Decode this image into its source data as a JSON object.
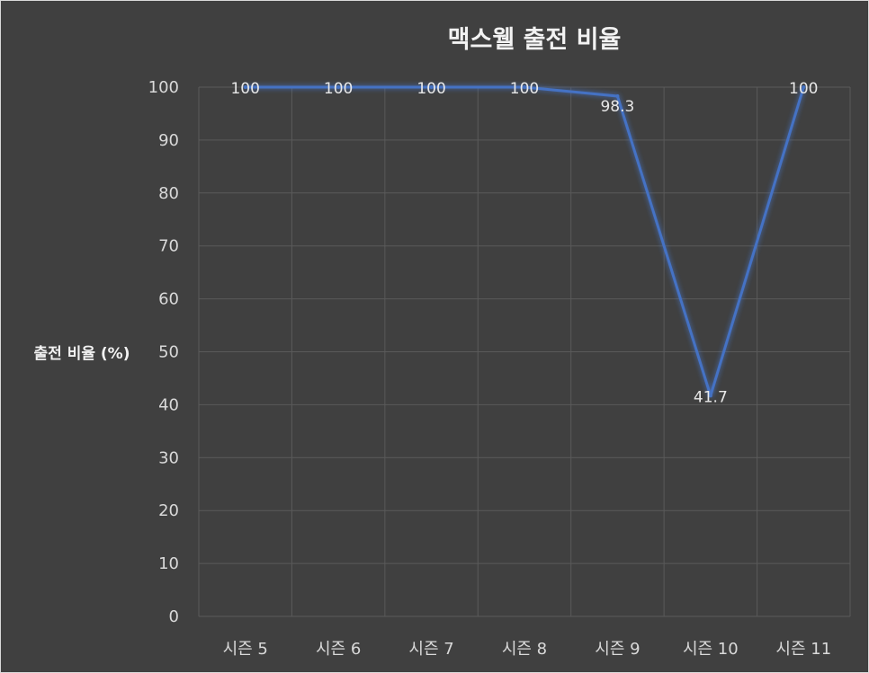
{
  "chart_data": {
    "type": "line",
    "title": "맥스웰 출전 비율",
    "xlabel": "",
    "ylabel": "출전 비율 (%)",
    "categories": [
      "시즌 5",
      "시즌 6",
      "시즌 7",
      "시즌 8",
      "시즌 9",
      "시즌 10",
      "시즌 11"
    ],
    "series": [
      {
        "values": [
          100,
          100,
          100,
          100,
          98.3,
          41.7,
          100
        ]
      }
    ],
    "data_labels": [
      "100",
      "100",
      "100",
      "100",
      "98.3",
      "41.7",
      "100"
    ],
    "ylim": [
      0,
      100
    ],
    "yticks": [
      "0",
      "10",
      "20",
      "30",
      "40",
      "50",
      "60",
      "70",
      "80",
      "90",
      "100"
    ],
    "grid": true,
    "legend": "none",
    "colors": {
      "background": "#404040",
      "line": "#4472c4",
      "text": "#d9d9d9",
      "grid": "#5a5a5a"
    }
  }
}
